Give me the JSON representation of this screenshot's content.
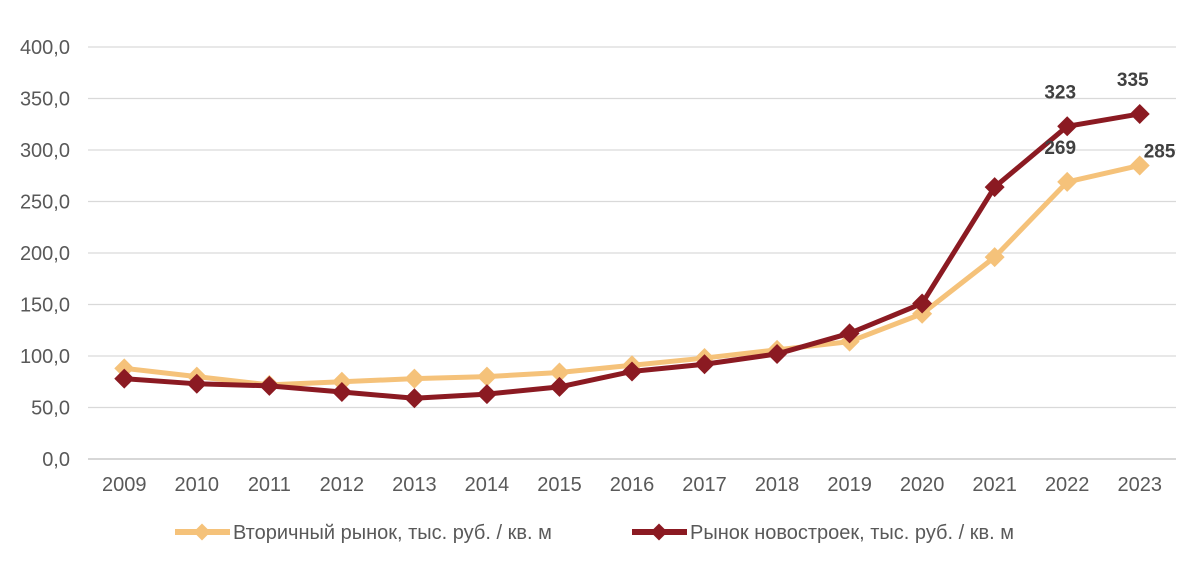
{
  "chart_data": {
    "type": "line",
    "categories": [
      "2009",
      "2010",
      "2011",
      "2012",
      "2013",
      "2014",
      "2015",
      "2016",
      "2017",
      "2018",
      "2019",
      "2020",
      "2021",
      "2022",
      "2023"
    ],
    "ylim": [
      0,
      400
    ],
    "yticks": [
      "0,0",
      "50,0",
      "100,0",
      "150,0",
      "200,0",
      "250,0",
      "300,0",
      "350,0",
      "400,0"
    ],
    "grid": true,
    "legend_position": "bottom",
    "series": [
      {
        "name": "Вторичный рынок, тыс. руб. / кв. м",
        "color": "#F5C27A",
        "values": [
          88,
          80,
          72,
          75,
          78,
          80,
          84,
          91,
          98,
          106,
          114,
          141,
          196,
          269,
          285
        ],
        "data_labels": {
          "13": "269",
          "14": "285"
        }
      },
      {
        "name": "Рынок новостроек, тыс. руб. / кв. м",
        "color": "#8B1A22",
        "values": [
          78,
          73,
          71,
          65,
          59,
          63,
          70,
          85,
          92,
          102,
          122,
          151,
          264,
          323,
          335
        ],
        "data_labels": {
          "13": "323",
          "14": "335"
        }
      }
    ]
  }
}
